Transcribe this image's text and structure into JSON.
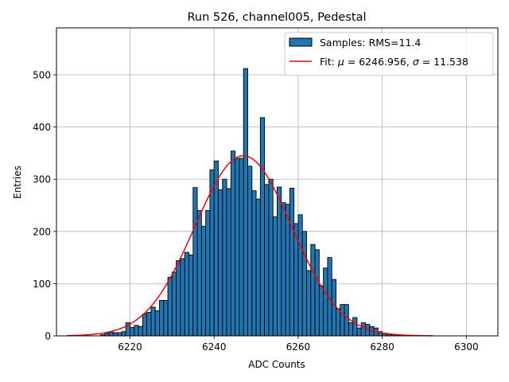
{
  "chart_data": {
    "type": "bar",
    "title": "Run 526, channel005, Pedestal",
    "xlabel": "ADC Counts",
    "ylabel": "Entries",
    "xlim": [
      6202.5,
      6307.5
    ],
    "ylim": [
      0,
      590
    ],
    "grid": true,
    "legend_position": "top-right",
    "x_ticks": [
      6220,
      6240,
      6260,
      6280,
      6300
    ],
    "y_ticks": [
      0,
      100,
      200,
      300,
      400,
      500
    ],
    "histogram": {
      "name": "Samples: RMS=11.4",
      "bin_width": 1,
      "color": "#1f77b4",
      "edge_color": "#000000",
      "bin_starts": [
        6213,
        6214,
        6215,
        6216,
        6217,
        6218,
        6219,
        6220,
        6221,
        6222,
        6223,
        6224,
        6225,
        6226,
        6227,
        6228,
        6229,
        6230,
        6231,
        6232,
        6233,
        6234,
        6235,
        6236,
        6237,
        6238,
        6239,
        6240,
        6241,
        6242,
        6243,
        6244,
        6245,
        6246,
        6247,
        6248,
        6249,
        6250,
        6251,
        6252,
        6253,
        6254,
        6255,
        6256,
        6257,
        6258,
        6259,
        6260,
        6261,
        6262,
        6263,
        6264,
        6265,
        6266,
        6267,
        6268,
        6269,
        6270,
        6271,
        6272,
        6273,
        6274,
        6275,
        6276,
        6277,
        6278,
        6279,
        6280,
        6281,
        6282,
        6283,
        6284,
        6285,
        6286
      ],
      "counts": [
        2,
        5,
        7,
        6,
        6,
        8,
        25,
        16,
        20,
        18,
        42,
        45,
        55,
        48,
        68,
        68,
        112,
        122,
        144,
        148,
        160,
        155,
        284,
        240,
        210,
        240,
        318,
        335,
        280,
        300,
        282,
        354,
        340,
        340,
        512,
        325,
        278,
        262,
        418,
        290,
        300,
        228,
        285,
        255,
        252,
        283,
        215,
        232,
        200,
        125,
        175,
        165,
        96,
        130,
        150,
        108,
        52,
        60,
        60,
        25,
        35,
        15,
        25,
        22,
        18,
        15,
        8,
        5,
        3,
        2,
        1,
        1,
        1,
        1
      ]
    },
    "fit": {
      "name": "Fit: μ = 6246.956, σ = 11.538",
      "label_prefix": "Fit: ",
      "mu_symbol": "μ",
      "mu_text": " = 6246.956, ",
      "sigma_symbol": "σ",
      "sigma_text": " = 11.538",
      "mu": 6246.956,
      "sigma": 11.538,
      "amplitude": 345,
      "x_range": [
        6205,
        6292
      ],
      "color": "#ff0000"
    }
  }
}
